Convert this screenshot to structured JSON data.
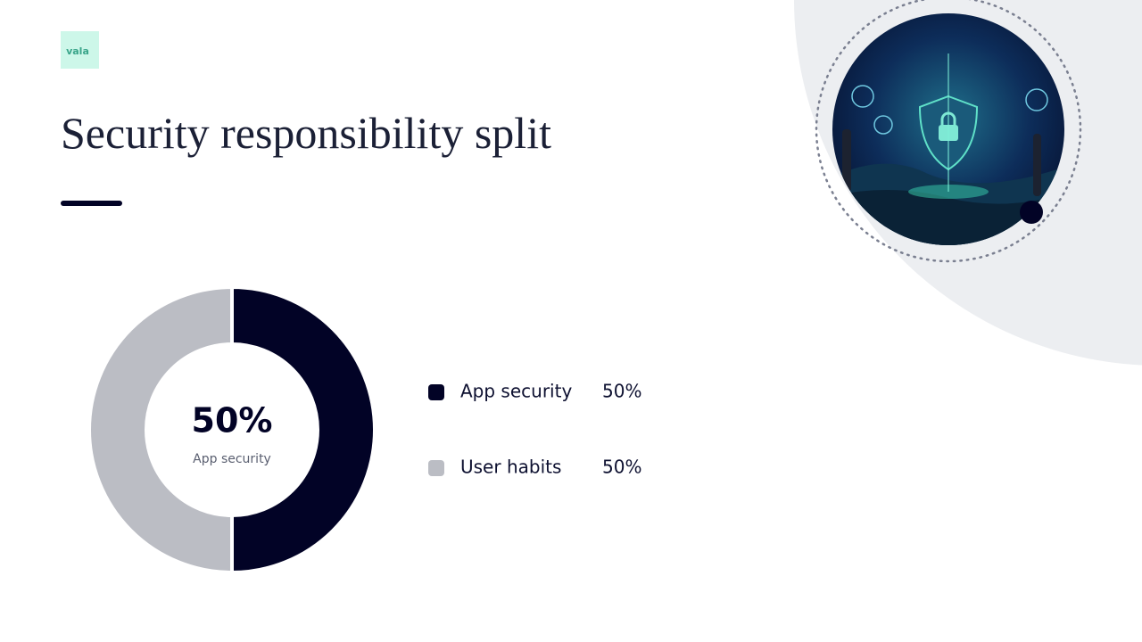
{
  "logo": "vala",
  "chart_data": {
    "type": "pie",
    "title": "Security responsibility split",
    "categories": [
      "App security",
      "User habits"
    ],
    "values": [
      50,
      50
    ],
    "value_labels": [
      "50%",
      "50%"
    ],
    "colors": [
      "#020326",
      "#bbbdc4"
    ],
    "donut": true
  }
}
